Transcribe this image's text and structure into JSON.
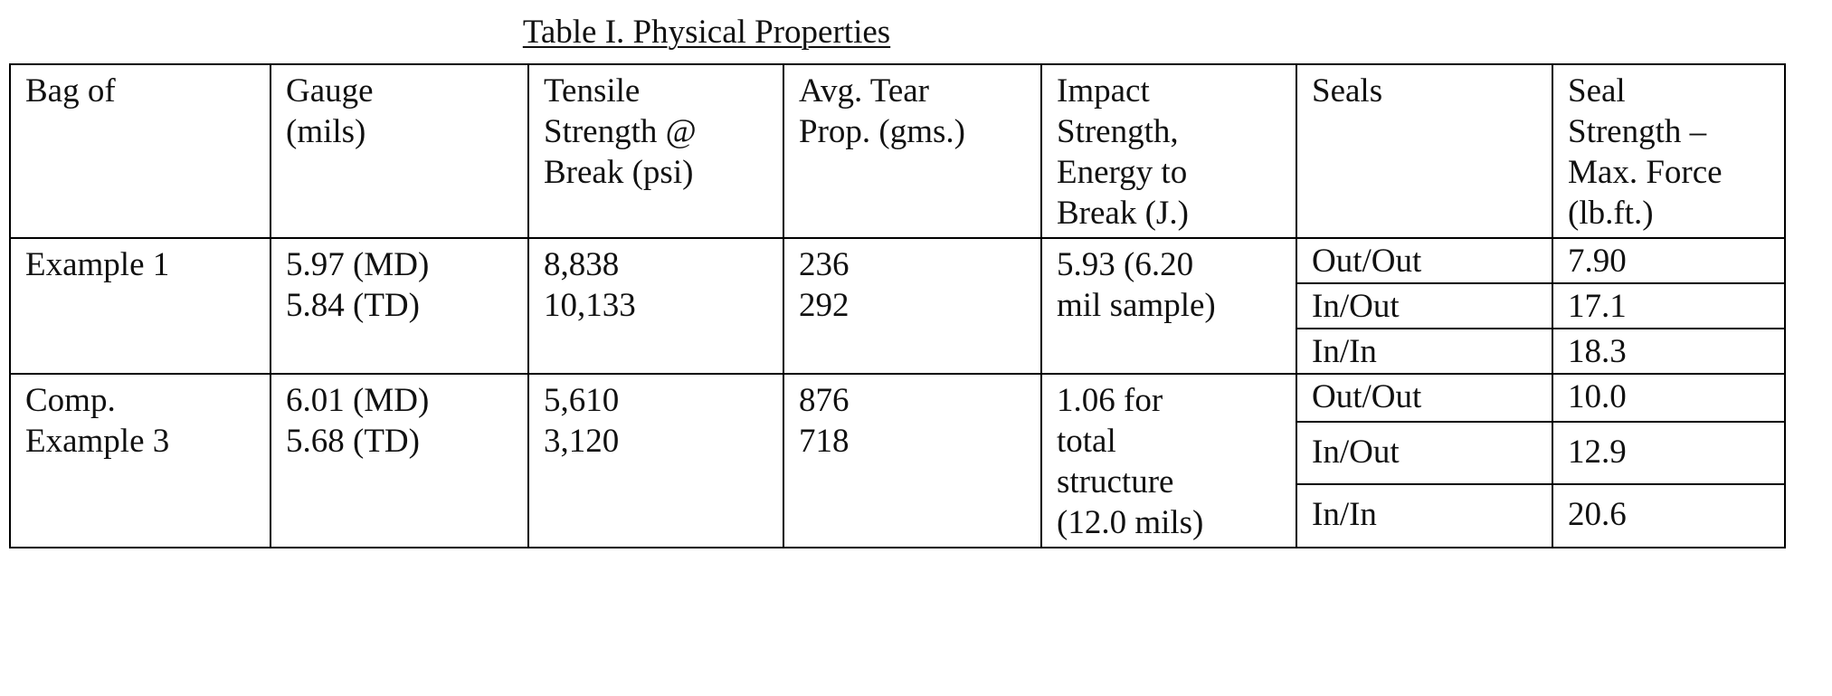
{
  "title": "Table I.  Physical Properties",
  "headers": {
    "bag": "Bag of",
    "gauge": [
      "Gauge",
      "(mils)"
    ],
    "tensile": [
      "Tensile",
      "Strength @",
      "Break (psi)"
    ],
    "tear": [
      "Avg. Tear",
      "Prop. (gms.)"
    ],
    "impact": [
      "Impact",
      "Strength,",
      "Energy to",
      "Break (J.)"
    ],
    "seals": "Seals",
    "seal_strength": [
      "Seal",
      "Strength –",
      "Max. Force",
      "(lb.ft.)"
    ]
  },
  "rows": [
    {
      "bag": [
        "Example 1"
      ],
      "gauge": [
        "5.97 (MD)",
        "5.84 (TD)"
      ],
      "tensile": [
        "8,838",
        "10,133"
      ],
      "tear": [
        "236",
        "292"
      ],
      "impact": [
        "5.93 (6.20",
        "mil sample)"
      ],
      "seals": [
        {
          "type": "Out/Out",
          "strength": "7.90"
        },
        {
          "type": "In/Out",
          "strength": "17.1"
        },
        {
          "type": "In/In",
          "strength": "18.3"
        }
      ]
    },
    {
      "bag": [
        "Comp.",
        "Example 3"
      ],
      "gauge": [
        "6.01 (MD)",
        "5.68 (TD)"
      ],
      "tensile": [
        "5,610",
        "3,120"
      ],
      "tear": [
        "876",
        "718"
      ],
      "impact": [
        "1.06 for",
        "total",
        "structure",
        "(12.0 mils)"
      ],
      "seals": [
        {
          "type": "Out/Out",
          "strength": "10.0"
        },
        {
          "type": "In/Out",
          "strength": "12.9"
        },
        {
          "type": "In/In",
          "strength": "20.6"
        }
      ]
    }
  ]
}
